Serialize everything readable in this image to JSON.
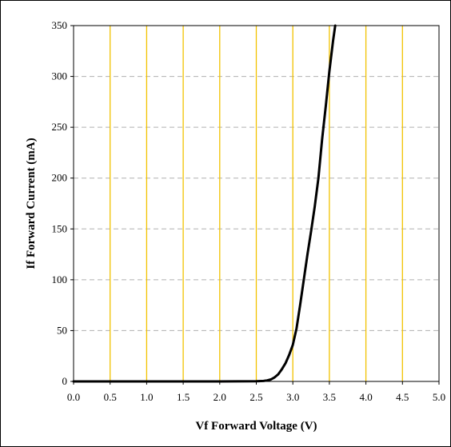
{
  "chart_data": {
    "type": "line",
    "xlabel": "Vf Forward Voltage (V)",
    "ylabel": "If Forward Current (mA)",
    "xlim": [
      0.0,
      5.0
    ],
    "ylim": [
      0,
      350
    ],
    "xticks": [
      0.0,
      0.5,
      1.0,
      1.5,
      2.0,
      2.5,
      3.0,
      3.5,
      4.0,
      4.5,
      5.0
    ],
    "xtick_labels": [
      "0.0",
      "0.5",
      "1.0",
      "1.5",
      "2.0",
      "2.5",
      "3.0",
      "3.5",
      "4.0",
      "4.5",
      "5.0"
    ],
    "yticks": [
      0,
      50,
      100,
      150,
      200,
      250,
      300,
      350
    ],
    "ytick_labels": [
      "0",
      "50",
      "100",
      "150",
      "200",
      "250",
      "300",
      "350"
    ],
    "grid": {
      "vertical": true,
      "vertical_style": "solid",
      "horizontal": true,
      "horizontal_style": "dashed"
    },
    "legend": "none",
    "colors": {
      "curve": "#000000",
      "vertical_grid": "#f2c200",
      "horizontal_grid": "#b0b0b0"
    },
    "series": [
      {
        "x": [
          0.0,
          1.0,
          2.0,
          2.5,
          2.6,
          2.65,
          2.7,
          2.75,
          2.8,
          2.85,
          2.9,
          2.95,
          3.0,
          3.05,
          3.1,
          3.15,
          3.2,
          3.25,
          3.3,
          3.35,
          3.4,
          3.45,
          3.5,
          3.55,
          3.58
        ],
        "values": [
          0,
          0,
          0,
          0.2,
          0.5,
          1,
          2,
          4,
          7,
          12,
          18,
          26,
          36,
          52,
          75,
          100,
          125,
          148,
          172,
          200,
          238,
          270,
          305,
          335,
          350
        ]
      }
    ]
  }
}
